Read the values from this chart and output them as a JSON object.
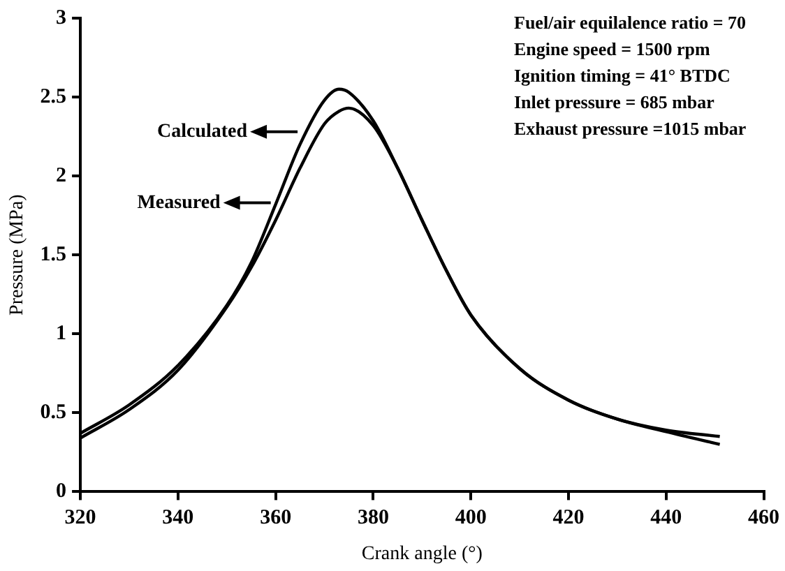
{
  "chart_data": {
    "type": "line",
    "xlabel": "Crank angle (°)",
    "ylabel": "Pressure (MPa)",
    "xlim": [
      320,
      460
    ],
    "xticks": [
      320,
      340,
      360,
      380,
      400,
      420,
      440,
      460
    ],
    "ylim": [
      0,
      3
    ],
    "yticks": [
      0,
      0.5,
      1,
      1.5,
      2,
      2.5,
      3
    ],
    "x": [
      320,
      330,
      340,
      350,
      355,
      360,
      365,
      370,
      373,
      375,
      380,
      385,
      390,
      395,
      400,
      410,
      420,
      430,
      440,
      451
    ],
    "series": [
      {
        "color": "#000000",
        "values": [
          0.37,
          0.55,
          0.8,
          1.18,
          1.45,
          1.82,
          2.2,
          2.48,
          2.55,
          2.53,
          2.35,
          2.05,
          1.72,
          1.4,
          1.12,
          0.78,
          0.58,
          0.46,
          0.38,
          0.3
        ]
      },
      {
        "color": "#000000",
        "values": [
          0.34,
          0.52,
          0.77,
          1.17,
          1.42,
          1.72,
          2.05,
          2.33,
          2.41,
          2.43,
          2.32,
          2.05,
          1.72,
          1.4,
          1.12,
          0.78,
          0.58,
          0.46,
          0.39,
          0.35
        ]
      }
    ],
    "annotations": [
      {
        "text": "Calculated",
        "x": 364.5,
        "y": 2.28
      },
      {
        "text": "Measured",
        "x": 359,
        "y": 1.83
      },
      "Fuel/air equilalence ratio = 70",
      "Engine speed = 1500 rpm",
      "Ignition timing = 41° BTDC",
      "Inlet pressure = 685 mbar",
      "Exhaust pressure =1015 mbar"
    ],
    "grid": false,
    "legend": false,
    "marker": "none",
    "line_style": "solid"
  }
}
